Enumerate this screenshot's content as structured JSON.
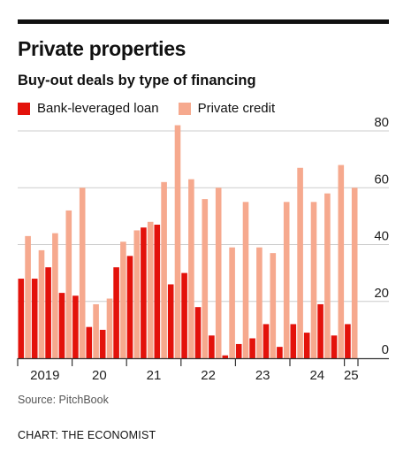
{
  "header": {
    "title": "Private properties",
    "subtitle": "Buy-out deals by type of financing"
  },
  "footer": {
    "source": "Source: PitchBook",
    "credit": "CHART: THE ECONOMIST"
  },
  "colors": {
    "bank": "#e3120b",
    "private": "#f6a98e",
    "grid": "#cccccc",
    "axis": "#333333"
  },
  "chart_data": {
    "type": "bar",
    "title": "Private properties",
    "subtitle": "Buy-out deals by type of financing",
    "xlabel": "",
    "ylabel": "",
    "ylim": [
      0,
      80
    ],
    "yticks": [
      0,
      20,
      40,
      60,
      80
    ],
    "grid": true,
    "legend": "top-left",
    "categories": [
      "2019 Q1",
      "2019 Q2",
      "2019 Q3",
      "2019 Q4",
      "2020 Q1",
      "2020 Q2",
      "2020 Q3",
      "2020 Q4",
      "2021 Q1",
      "2021 Q2",
      "2021 Q3",
      "2021 Q4",
      "2022 Q1",
      "2022 Q2",
      "2022 Q3",
      "2022 Q4",
      "2023 Q1",
      "2023 Q2",
      "2023 Q3",
      "2023 Q4",
      "2024 Q1",
      "2024 Q2",
      "2024 Q3",
      "2024 Q4",
      "2025 Q1"
    ],
    "year_labels": [
      {
        "label": "2019",
        "start": 0,
        "count": 4
      },
      {
        "label": "20",
        "start": 4,
        "count": 4
      },
      {
        "label": "21",
        "start": 8,
        "count": 4
      },
      {
        "label": "22",
        "start": 12,
        "count": 4
      },
      {
        "label": "23",
        "start": 16,
        "count": 4
      },
      {
        "label": "24",
        "start": 20,
        "count": 4
      },
      {
        "label": "25",
        "start": 24,
        "count": 1
      }
    ],
    "series": [
      {
        "name": "Bank-leveraged loan",
        "values": [
          28,
          28,
          32,
          23,
          22,
          11,
          10,
          32,
          36,
          46,
          47,
          26,
          30,
          18,
          8,
          1,
          5,
          7,
          12,
          4,
          12,
          9,
          19,
          8,
          12
        ]
      },
      {
        "name": "Private credit",
        "values": [
          43,
          38,
          44,
          52,
          60,
          19,
          21,
          41,
          45,
          48,
          62,
          82,
          63,
          56,
          60,
          39,
          55,
          39,
          37,
          55,
          67,
          55,
          58,
          68,
          60
        ]
      }
    ]
  }
}
